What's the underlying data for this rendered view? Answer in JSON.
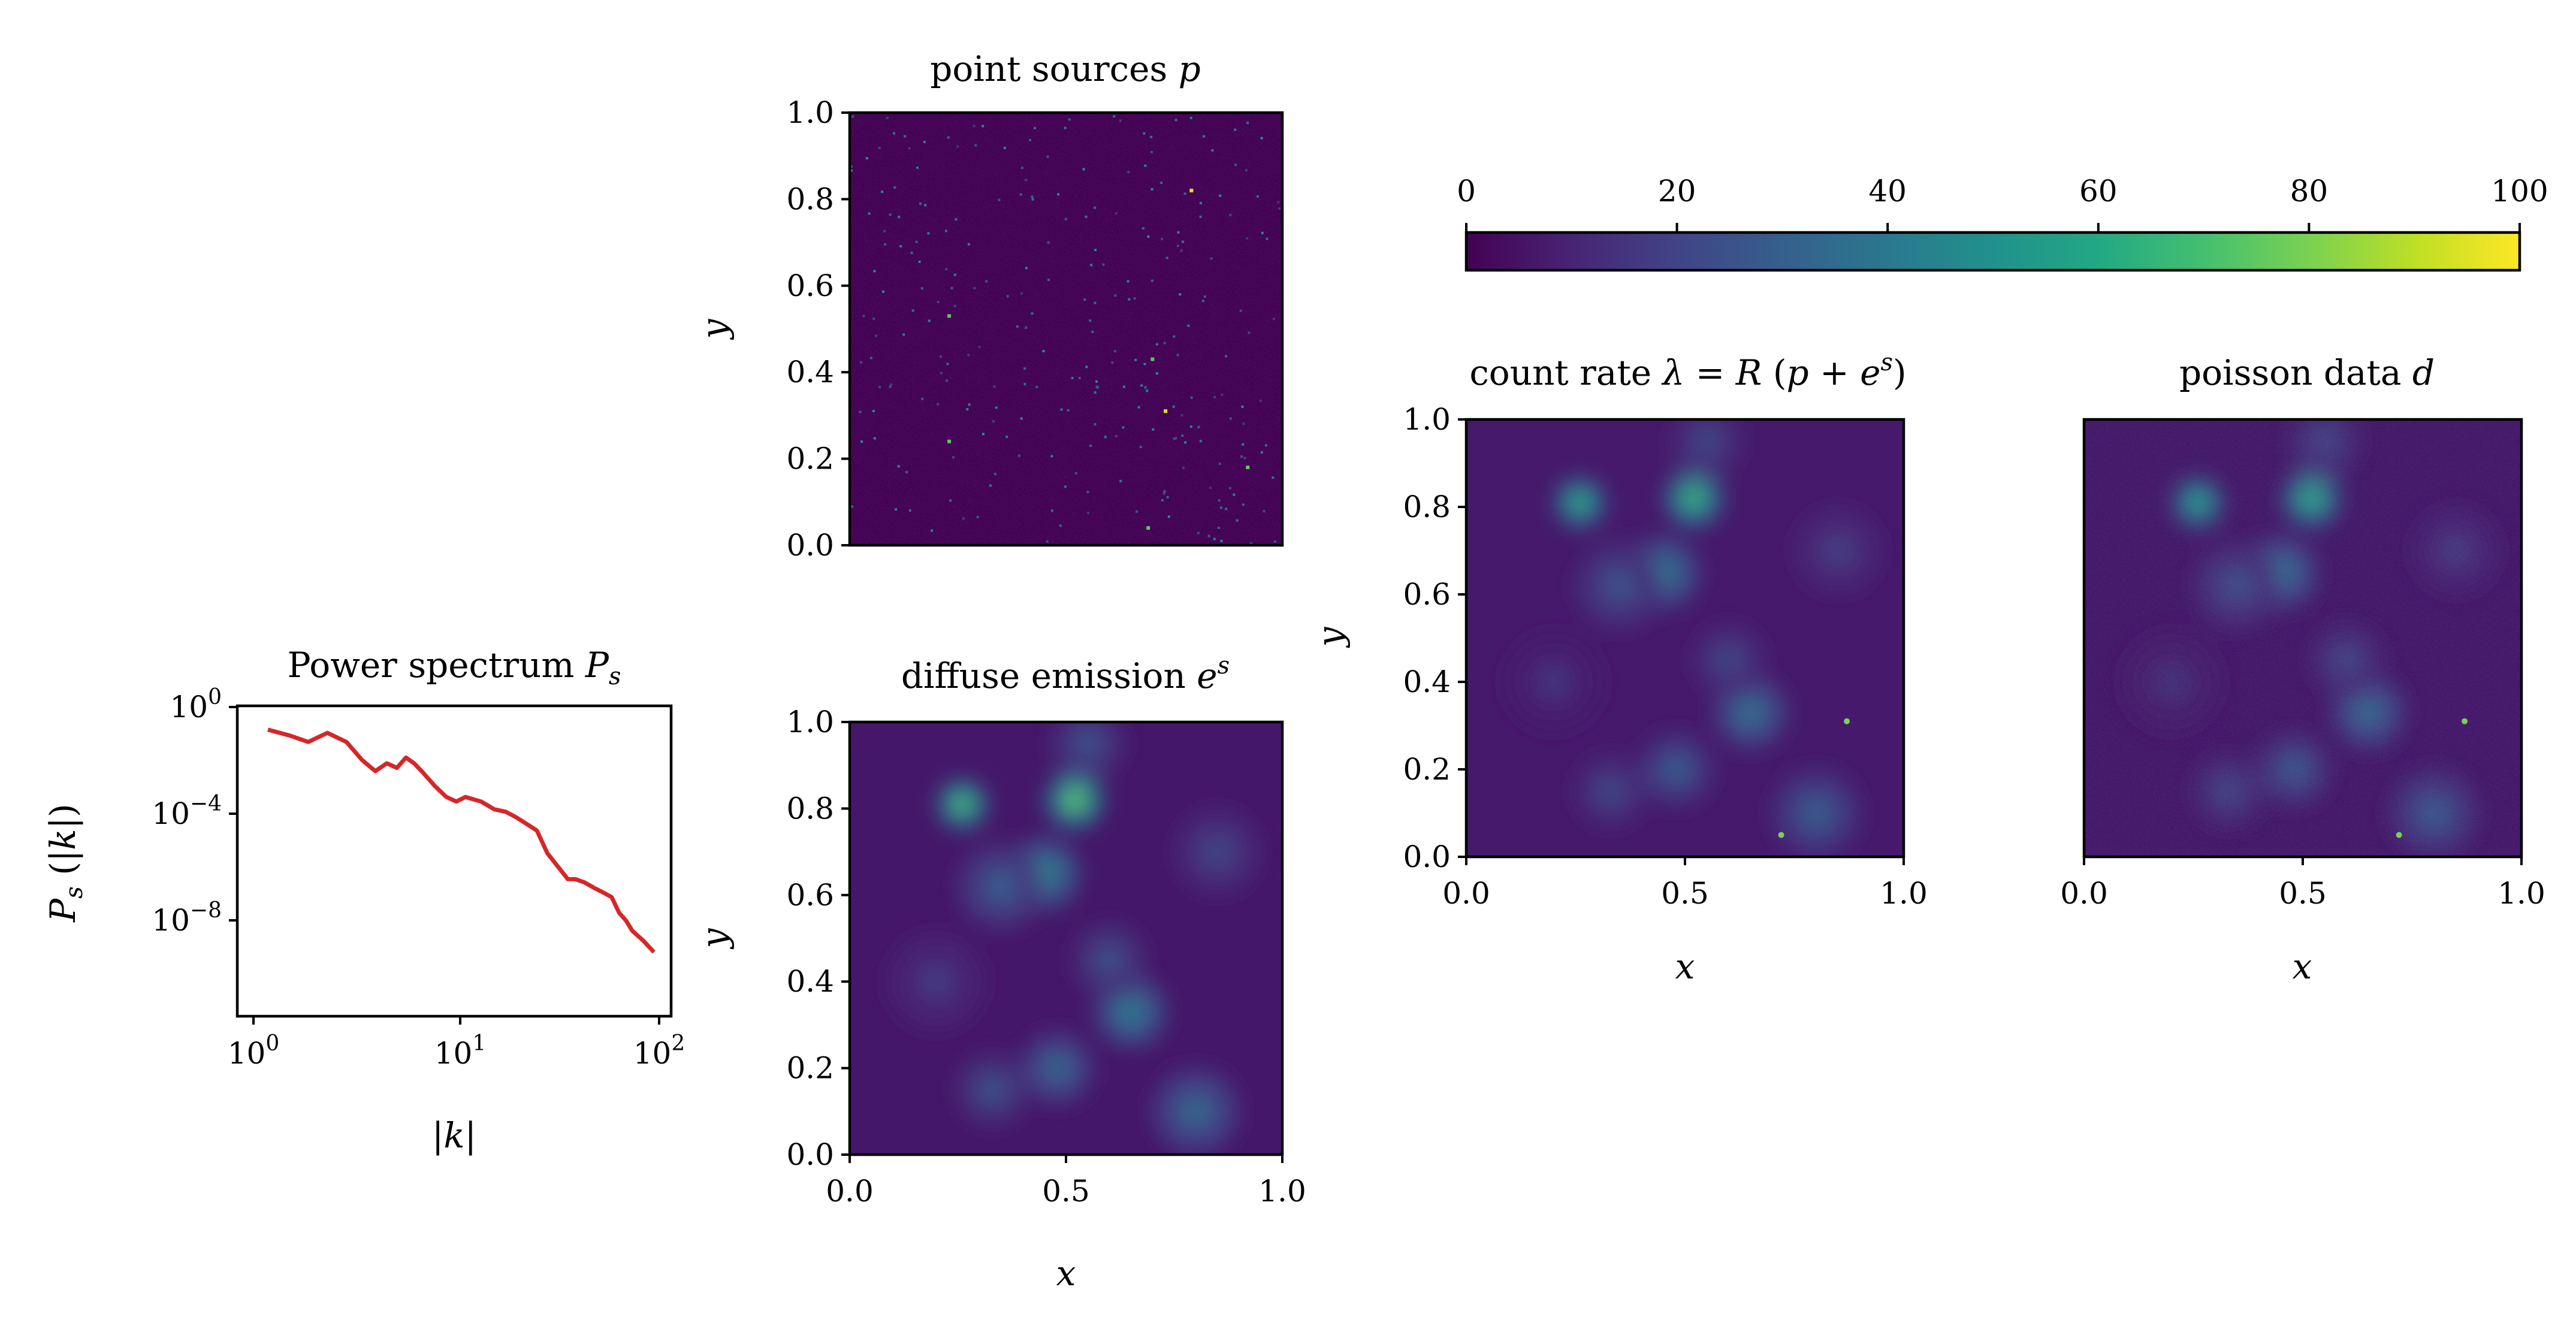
{
  "chart_data": [
    {
      "type": "line",
      "title": "Power spectrum P_s",
      "xlabel": "|k|",
      "ylabel": "P_s (|k|)",
      "xscale": "log",
      "yscale": "log",
      "xlim": [
        0.7,
        110
      ],
      "ylim": [
        1e-12,
        1
      ],
      "xticks": [
        "10^0",
        "10^1",
        "10^2"
      ],
      "yticks": [
        "10^0",
        "10^-4",
        "10^-8"
      ],
      "color": "#d62728",
      "series": [
        {
          "x": [
            1,
            1.3,
            1.6,
            2,
            2.5,
            3,
            3.5,
            4,
            4.5,
            5,
            5.5,
            6,
            7,
            8,
            9,
            10,
            12,
            14,
            16,
            18,
            20,
            23,
            26,
            30,
            33,
            36,
            40,
            45,
            50,
            55,
            60,
            65,
            70,
            80,
            90
          ],
          "y": [
            0.12,
            0.07,
            0.04,
            0.09,
            0.04,
            0.008,
            0.003,
            0.006,
            0.004,
            0.01,
            0.006,
            0.003,
            0.0008,
            0.0003,
            0.0002,
            0.0003,
            0.0002,
            0.0001,
            8e-05,
            5e-05,
            3e-05,
            1.5e-05,
            2e-06,
            5e-07,
            2e-07,
            2e-07,
            1.5e-07,
            9e-08,
            6e-08,
            4e-08,
            1e-08,
            5e-09,
            2e-09,
            8e-10,
            3e-10
          ]
        }
      ]
    },
    {
      "type": "heatmap",
      "title": "point sources p",
      "xlabel": "",
      "ylabel": "y",
      "xlim": [
        0,
        1
      ],
      "ylim": [
        0,
        1
      ],
      "yticks": [
        "0.0",
        "0.2",
        "0.4",
        "0.6",
        "0.8",
        "1.0"
      ],
      "colormap": "viridis",
      "bright_points": [
        {
          "x": 0.79,
          "y": 0.82
        },
        {
          "x": 0.73,
          "y": 0.31
        },
        {
          "x": 0.7,
          "y": 0.43
        },
        {
          "x": 0.23,
          "y": 0.24
        },
        {
          "x": 0.69,
          "y": 0.04
        },
        {
          "x": 0.92,
          "y": 0.18
        },
        {
          "x": 0.23,
          "y": 0.53
        }
      ]
    },
    {
      "type": "heatmap",
      "title": "diffuse emission e^s",
      "xlabel": "x",
      "ylabel": "y",
      "xlim": [
        0,
        1
      ],
      "ylim": [
        0,
        1
      ],
      "xticks": [
        "0.0",
        "0.5",
        "1.0"
      ],
      "yticks": [
        "0.0",
        "0.2",
        "0.4",
        "0.6",
        "0.8",
        "1.0"
      ],
      "colormap": "viridis",
      "blobs": [
        {
          "x": 0.26,
          "y": 0.81,
          "v": 0.85,
          "r": 0.035
        },
        {
          "x": 0.52,
          "y": 0.82,
          "v": 0.9,
          "r": 0.04
        },
        {
          "x": 0.45,
          "y": 0.65,
          "v": 0.55,
          "r": 0.05
        },
        {
          "x": 0.35,
          "y": 0.62,
          "v": 0.35,
          "r": 0.06
        },
        {
          "x": 0.65,
          "y": 0.33,
          "v": 0.5,
          "r": 0.05
        },
        {
          "x": 0.48,
          "y": 0.2,
          "v": 0.4,
          "r": 0.05
        },
        {
          "x": 0.33,
          "y": 0.15,
          "v": 0.3,
          "r": 0.05
        },
        {
          "x": 0.8,
          "y": 0.1,
          "v": 0.4,
          "r": 0.06
        },
        {
          "x": 0.6,
          "y": 0.45,
          "v": 0.3,
          "r": 0.05
        },
        {
          "x": 0.2,
          "y": 0.4,
          "v": 0.2,
          "r": 0.07
        },
        {
          "x": 0.85,
          "y": 0.7,
          "v": 0.25,
          "r": 0.06
        },
        {
          "x": 0.55,
          "y": 0.95,
          "v": 0.3,
          "r": 0.05
        }
      ]
    },
    {
      "type": "heatmap",
      "title": "count rate λ = R (p + e^s)",
      "xlabel": "x",
      "ylabel": "y",
      "xlim": [
        0,
        1
      ],
      "ylim": [
        0,
        1
      ],
      "xticks": [
        "0.0",
        "0.5",
        "1.0"
      ],
      "yticks": [
        "0.0",
        "0.2",
        "0.4",
        "0.6",
        "0.8",
        "1.0"
      ],
      "colormap": "viridis"
    },
    {
      "type": "heatmap",
      "title": "poisson data d",
      "xlabel": "x",
      "ylabel": "",
      "xlim": [
        0,
        1
      ],
      "ylim": [
        0,
        1
      ],
      "xticks": [
        "0.0",
        "0.5",
        "1.0"
      ],
      "colormap": "viridis"
    },
    {
      "type": "colorbar",
      "colormap": "viridis",
      "range": [
        0,
        100
      ],
      "ticks": [
        "0",
        "20",
        "40",
        "60",
        "80",
        "100"
      ]
    }
  ]
}
